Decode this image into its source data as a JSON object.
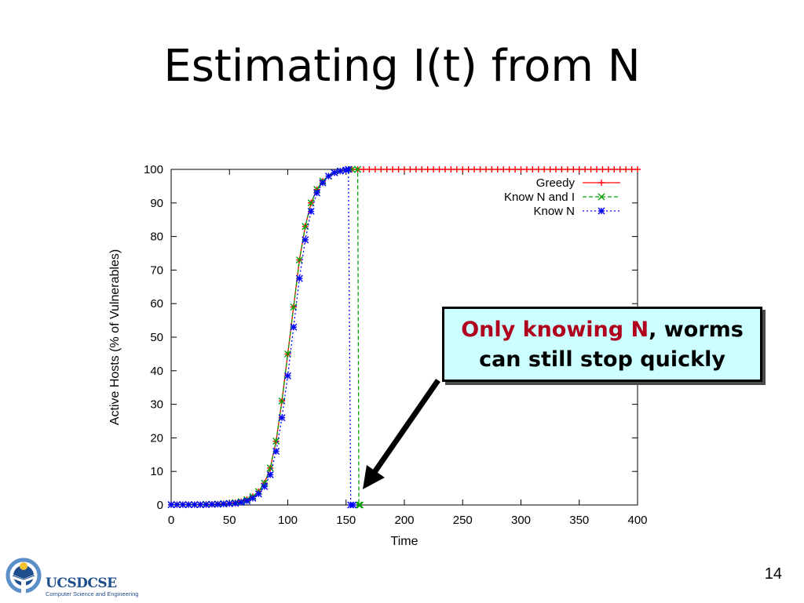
{
  "slide": {
    "title": "Estimating I(t) from N",
    "page_number": "14",
    "callout": {
      "highlight": "Only knowing N",
      "rest_line1": ", worms",
      "line2": "can still stop quickly"
    },
    "logo": {
      "wordmark": "UCSDCSE",
      "subtitle": "Computer Science and Engineering",
      "icon": "ucsd-person-globe-icon"
    }
  },
  "chart_data": {
    "type": "line",
    "xlabel": "Time",
    "ylabel": "Active Hosts (% of Vulnerables)",
    "xlim": [
      0,
      400
    ],
    "ylim": [
      0,
      100
    ],
    "xticks": [
      0,
      50,
      100,
      150,
      200,
      250,
      300,
      350,
      400
    ],
    "yticks": [
      0,
      10,
      20,
      30,
      40,
      50,
      60,
      70,
      80,
      90,
      100
    ],
    "grid": false,
    "legend_position": "top-right",
    "series": [
      {
        "name": "Greedy",
        "color": "#ff0000",
        "line": "solid",
        "marker": "plus",
        "x": [
          0,
          5,
          10,
          15,
          20,
          25,
          30,
          35,
          40,
          45,
          50,
          55,
          60,
          65,
          70,
          75,
          80,
          85,
          90,
          95,
          100,
          105,
          110,
          115,
          120,
          125,
          130,
          135,
          140,
          145,
          150,
          155,
          160,
          165,
          170,
          175,
          180,
          185,
          190,
          195,
          200,
          205,
          210,
          215,
          220,
          225,
          230,
          235,
          240,
          245,
          250,
          255,
          260,
          265,
          270,
          275,
          280,
          285,
          290,
          295,
          300,
          305,
          310,
          315,
          320,
          325,
          330,
          335,
          340,
          345,
          350,
          355,
          360,
          365,
          370,
          375,
          380,
          385,
          390,
          395,
          400
        ],
        "y": [
          0.1,
          0.1,
          0.1,
          0.1,
          0.1,
          0.1,
          0.2,
          0.2,
          0.3,
          0.4,
          0.5,
          0.7,
          1.0,
          1.6,
          2.5,
          4.0,
          6.5,
          11.0,
          19.0,
          31.0,
          45.0,
          59.0,
          73.0,
          83.0,
          90.0,
          94.0,
          96.5,
          98.0,
          99.0,
          99.5,
          99.8,
          100,
          100,
          100,
          100,
          100,
          100,
          100,
          100,
          100,
          100,
          100,
          100,
          100,
          100,
          100,
          100,
          100,
          100,
          100,
          100,
          100,
          100,
          100,
          100,
          100,
          100,
          100,
          100,
          100,
          100,
          100,
          100,
          100,
          100,
          100,
          100,
          100,
          100,
          100,
          100,
          100,
          100,
          100,
          100,
          100,
          100,
          100,
          100,
          100,
          100
        ]
      },
      {
        "name": "Know N and I",
        "color": "#00a000",
        "line": "dashed",
        "marker": "x",
        "x": [
          0,
          5,
          10,
          15,
          20,
          25,
          30,
          35,
          40,
          45,
          50,
          55,
          60,
          65,
          70,
          75,
          80,
          85,
          90,
          95,
          100,
          105,
          110,
          115,
          120,
          125,
          130,
          135,
          140,
          145,
          150,
          155,
          160,
          161,
          162
        ],
        "y": [
          0.1,
          0.1,
          0.1,
          0.1,
          0.1,
          0.1,
          0.2,
          0.2,
          0.3,
          0.4,
          0.5,
          0.7,
          1.0,
          1.6,
          2.5,
          4.0,
          6.5,
          11.0,
          19.0,
          31.0,
          45.0,
          59.0,
          73.0,
          83.0,
          90.0,
          94.0,
          96.5,
          98.0,
          99.0,
          99.5,
          99.8,
          100,
          100,
          0,
          0
        ]
      },
      {
        "name": "Know N",
        "color": "#0000ff",
        "line": "dotted",
        "marker": "star",
        "x": [
          0,
          5,
          10,
          15,
          20,
          25,
          30,
          35,
          40,
          45,
          50,
          55,
          60,
          65,
          70,
          75,
          80,
          85,
          90,
          95,
          100,
          105,
          110,
          115,
          120,
          125,
          130,
          135,
          140,
          145,
          150,
          152,
          154,
          156
        ],
        "y": [
          0.1,
          0.1,
          0.1,
          0.1,
          0.1,
          0.1,
          0.1,
          0.2,
          0.2,
          0.3,
          0.4,
          0.5,
          0.8,
          1.2,
          2.0,
          3.3,
          5.5,
          9.0,
          16.0,
          26.0,
          38.5,
          53.0,
          67.5,
          79.0,
          87.5,
          93.0,
          96.0,
          98.0,
          99.0,
          99.5,
          99.8,
          100,
          0,
          0
        ]
      }
    ]
  }
}
